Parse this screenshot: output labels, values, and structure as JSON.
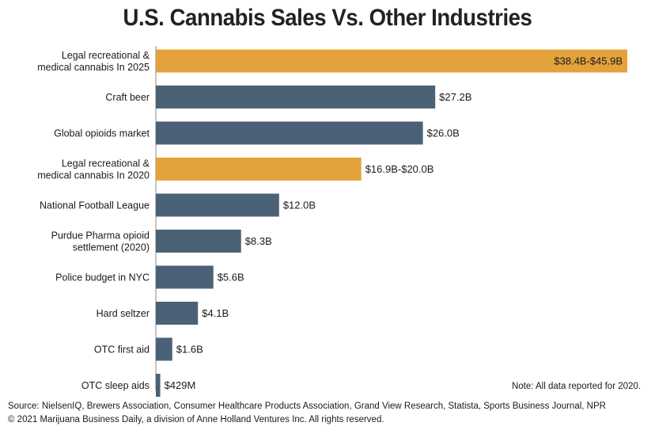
{
  "title": "U.S. Cannabis Sales Vs. Other Industries",
  "note": "Note: All data reported for 2020.",
  "footer": {
    "source": "Source: NielsenIQ, Brewers Association, Consumer Healthcare Products Association, Grand View Research, Statista, Sports Business Journal, NPR",
    "copyright": "© 2021 Marijuana Business Daily, a division of Anne Holland Ventures Inc. All rights reserved."
  },
  "colors": {
    "cannabis": "#E3A23B",
    "other": "#4B6276"
  },
  "chart_data": {
    "type": "bar",
    "orientation": "horizontal",
    "title": "U.S. Cannabis Sales Vs. Other Industries",
    "unit": "billion USD",
    "categories": [
      [
        "Legal recreational &",
        "medical cannabis In 2025"
      ],
      [
        "Craft beer"
      ],
      [
        "Global opioids market"
      ],
      [
        "Legal recreational &",
        "medical cannabis In 2020"
      ],
      [
        "National Football League"
      ],
      [
        "Purdue Pharma opioid",
        "settlement (2020)"
      ],
      [
        "Police budget in NYC"
      ],
      [
        "Hard seltzer"
      ],
      [
        "OTC first aid"
      ],
      [
        "OTC sleep aids"
      ]
    ],
    "values": [
      45.9,
      27.2,
      26.0,
      20.0,
      12.0,
      8.3,
      5.6,
      4.1,
      1.6,
      0.429
    ],
    "ranges": [
      [
        38.4,
        45.9
      ],
      null,
      null,
      [
        16.9,
        20.0
      ],
      null,
      null,
      null,
      null,
      null,
      null
    ],
    "data_labels": [
      "$38.4B-$45.9B",
      "$27.2B",
      "$26.0B",
      "$16.9B-$20.0B",
      "$12.0B",
      "$8.3B",
      "$5.6B",
      "$4.1B",
      "$1.6B",
      "$429M"
    ],
    "highlight": [
      true,
      false,
      false,
      true,
      false,
      false,
      false,
      false,
      false,
      false
    ],
    "xlim": [
      0,
      45.9
    ],
    "grid": false,
    "legend": "none"
  }
}
